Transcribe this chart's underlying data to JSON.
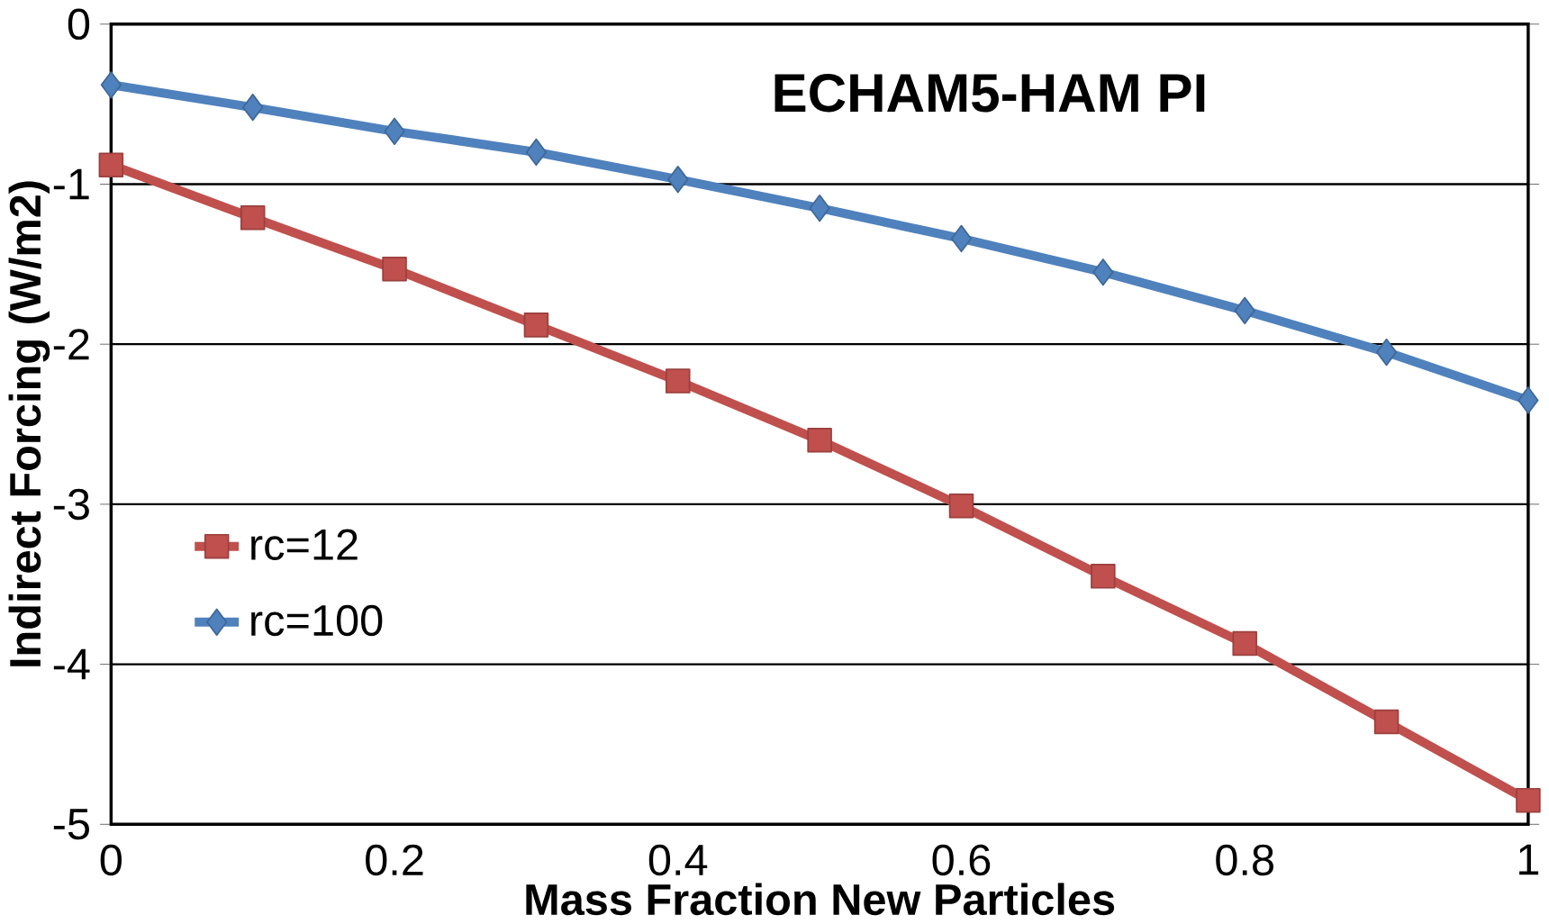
{
  "chart_data": {
    "type": "line",
    "title": "ECHAM5-HAM PI",
    "xlabel": "Mass Fraction New Particles",
    "ylabel": "Indirect Forcing (W/m2)",
    "x": [
      0,
      0.1,
      0.2,
      0.3,
      0.4,
      0.5,
      0.6,
      0.7,
      0.8,
      0.9,
      1
    ],
    "series": [
      {
        "name": "rc=12",
        "color": "#c0504d",
        "marker": "square",
        "values": [
          -0.88,
          -1.21,
          -1.53,
          -1.88,
          -2.23,
          -2.6,
          -3.01,
          -3.45,
          -3.87,
          -4.36,
          -4.85
        ]
      },
      {
        "name": "rc=100",
        "color": "#4f81bd",
        "marker": "diamond",
        "values": [
          -0.38,
          -0.52,
          -0.67,
          -0.8,
          -0.97,
          -1.15,
          -1.34,
          -1.55,
          -1.79,
          -2.05,
          -2.35
        ]
      }
    ],
    "xlim": [
      0,
      1
    ],
    "ylim": [
      -5,
      0
    ],
    "xticks": [
      0,
      0.2,
      0.4,
      0.6,
      0.8,
      1
    ],
    "yticks": [
      -5,
      -4,
      -3,
      -2,
      -1,
      0
    ],
    "grid": "y",
    "legend": "left",
    "line_style": "solid"
  }
}
